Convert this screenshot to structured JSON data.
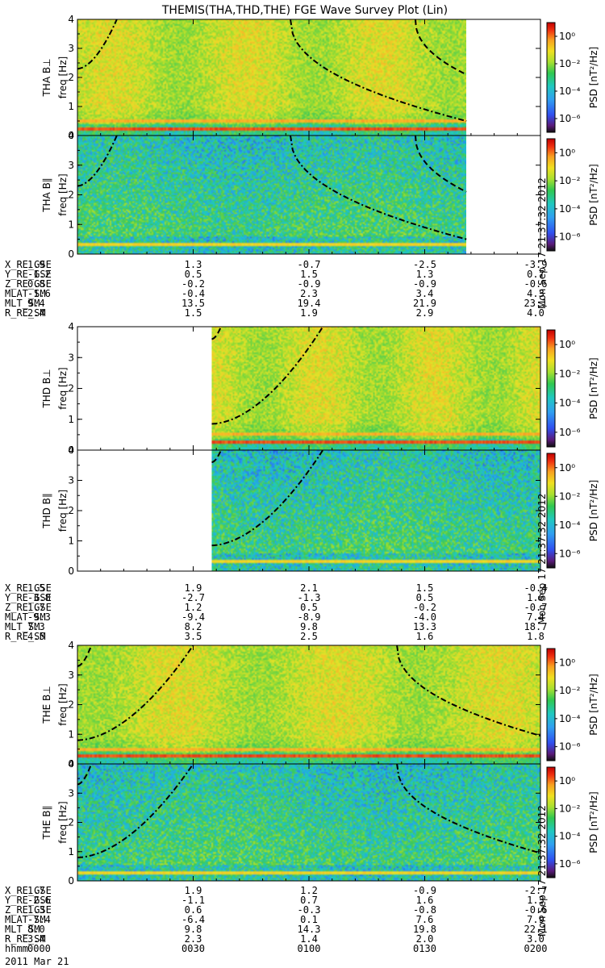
{
  "title": "THEMIS(THA,THD,THE) FGE Wave Survey Plot (Lin)",
  "colorbar": {
    "label": "PSD [nT²/Hz]",
    "ticks": [
      "10⁰",
      "10⁻²",
      "10⁻⁴",
      "10⁻⁶"
    ],
    "tick_exponents": [
      0,
      -2,
      -4,
      -6
    ]
  },
  "stamp": "Mon Sep 17 21:37:32 2012",
  "chart_data": {
    "type": "heatmap",
    "xlim_hhmm": [
      "0000",
      "0200"
    ],
    "ylim_hz": [
      0,
      4
    ],
    "yticks": [
      "0",
      "1",
      "2",
      "3",
      "4"
    ],
    "ylabel": "freq [Hz]",
    "panels": [
      {
        "probe": "THA",
        "component": "B⊥",
        "label": "THA B⊥",
        "data_end_frac": 0.84,
        "data_start_frac": 0.0,
        "curves": [
          {
            "style": "dashdot",
            "type": "rise",
            "end_time": 0.085,
            "f0": 2.3
          },
          {
            "style": "dashdot",
            "type": "fall",
            "start_time": 0.46,
            "f_end": 0.5
          },
          {
            "style": "dash",
            "type": "fall",
            "start_time": 0.73,
            "f_end": 2.1
          }
        ]
      },
      {
        "probe": "THA",
        "component": "B∥",
        "label": "THA B∥",
        "data_end_frac": 0.84,
        "data_start_frac": 0.0,
        "curves": [
          {
            "style": "dashdot",
            "type": "rise",
            "end_time": 0.085,
            "f0": 2.3
          },
          {
            "style": "dashdot",
            "type": "fall",
            "start_time": 0.46,
            "f_end": 0.5
          },
          {
            "style": "dash",
            "type": "fall",
            "start_time": 0.73,
            "f_end": 2.1
          }
        ]
      },
      {
        "probe": "THD",
        "component": "B⊥",
        "label": "THD B⊥",
        "data_end_frac": 1.0,
        "data_start_frac": 0.29,
        "curves": [
          {
            "style": "dashdot",
            "type": "rise",
            "end_time": 0.53,
            "f0": 0.85
          },
          {
            "style": "dash",
            "type": "rise",
            "end_time": 0.31,
            "f0": 3.6
          }
        ]
      },
      {
        "probe": "THD",
        "component": "B∥",
        "label": "THD B∥",
        "data_end_frac": 1.0,
        "data_start_frac": 0.29,
        "curves": [
          {
            "style": "dashdot",
            "type": "rise",
            "end_time": 0.53,
            "f0": 0.85
          },
          {
            "style": "dash",
            "type": "rise",
            "end_time": 0.31,
            "f0": 3.6
          }
        ]
      },
      {
        "probe": "THE",
        "component": "B⊥",
        "label": "THE B⊥",
        "data_end_frac": 1.0,
        "data_start_frac": 0.0,
        "curves": [
          {
            "style": "dashdot",
            "type": "rise",
            "end_time": 0.25,
            "f0": 0.8
          },
          {
            "style": "dashdot",
            "type": "fall",
            "start_time": 0.69,
            "f_end": 0.95
          },
          {
            "style": "dash",
            "type": "rise",
            "end_time": 0.03,
            "f0": 3.3
          }
        ]
      },
      {
        "probe": "THE",
        "component": "B∥",
        "label": "THE B∥",
        "data_end_frac": 1.0,
        "data_start_frac": 0.0,
        "curves": [
          {
            "style": "dashdot",
            "type": "rise",
            "end_time": 0.25,
            "f0": 0.8
          },
          {
            "style": "dashdot",
            "type": "fall",
            "start_time": 0.69,
            "f_end": 0.95
          },
          {
            "style": "dash",
            "type": "rise",
            "end_time": 0.03,
            "f0": 3.3
          }
        ]
      }
    ],
    "ephemeris": [
      {
        "probe": "THA",
        "rows": [
          {
            "name": "X_RE_GSE",
            "values": [
              "1.9",
              "1.3",
              "-0.7",
              "-2.5",
              "-3.9"
            ]
          },
          {
            "name": "Y_RE_GSE",
            "values": [
              "-1.2",
              "0.5",
              "1.5",
              "1.3",
              "0.7"
            ]
          },
          {
            "name": "Z_RE_GSE",
            "values": [
              "0.8",
              "-0.2",
              "-0.9",
              "-0.9",
              "-0.6"
            ]
          },
          {
            "name": "MLAT_SM",
            "values": [
              "-1.6",
              "-0.4",
              "2.3",
              "3.4",
              "4.3"
            ]
          },
          {
            "name": "MLT_SM",
            "values": [
              "9.4",
              "13.5",
              "19.4",
              "21.9",
              "23.1"
            ]
          },
          {
            "name": "R_RE_SM",
            "values": [
              "2.4",
              "1.5",
              "1.9",
              "2.9",
              "4.0"
            ]
          }
        ]
      },
      {
        "probe": "THD",
        "rows": [
          {
            "name": "X_RE_GSE",
            "values": [
              "1.5",
              "1.9",
              "2.1",
              "1.5",
              "-0.4"
            ]
          },
          {
            "name": "Y_RE_GSE",
            "values": [
              "-3.8",
              "-2.7",
              "-1.3",
              "0.5",
              "1.6"
            ]
          },
          {
            "name": "Z_RE_GSE",
            "values": [
              "1.7",
              "1.2",
              "0.5",
              "-0.2",
              "-0.7"
            ]
          },
          {
            "name": "MLAT_SM",
            "values": [
              "-9.3",
              "-9.4",
              "-8.9",
              "-4.0",
              "7.4"
            ]
          },
          {
            "name": "MLT_SM",
            "values": [
              "7.3",
              "8.2",
              "9.8",
              "13.3",
              "18.7"
            ]
          },
          {
            "name": "R_RE_SM",
            "values": [
              "4.5",
              "3.5",
              "2.5",
              "1.6",
              "1.8"
            ]
          }
        ]
      },
      {
        "probe": "THE",
        "rows": [
          {
            "name": "X_RE_GSE",
            "values": [
              "1.7",
              "1.9",
              "1.2",
              "-0.9",
              "-2.7"
            ]
          },
          {
            "name": "Y_RE_GSE",
            "values": [
              "-2.6",
              "-1.1",
              "0.7",
              "1.6",
              "1.3"
            ]
          },
          {
            "name": "Z_RE_GSE",
            "values": [
              "1.3",
              "0.6",
              "-0.3",
              "-0.8",
              "-0.6"
            ]
          },
          {
            "name": "MLAT_SM",
            "values": [
              "-7.4",
              "-6.4",
              "0.1",
              "7.6",
              "7.9"
            ]
          },
          {
            "name": "MLT_SM",
            "values": [
              "8.0",
              "9.8",
              "14.3",
              "19.8",
              "22.1"
            ]
          },
          {
            "name": "R_RE_SM",
            "values": [
              "3.4",
              "2.3",
              "1.4",
              "2.0",
              "3.0"
            ]
          },
          {
            "name": "hhmm",
            "values": [
              "0000",
              "0030",
              "0100",
              "0130",
              "0200"
            ]
          }
        ]
      }
    ],
    "date": "2011 Mar 21"
  }
}
